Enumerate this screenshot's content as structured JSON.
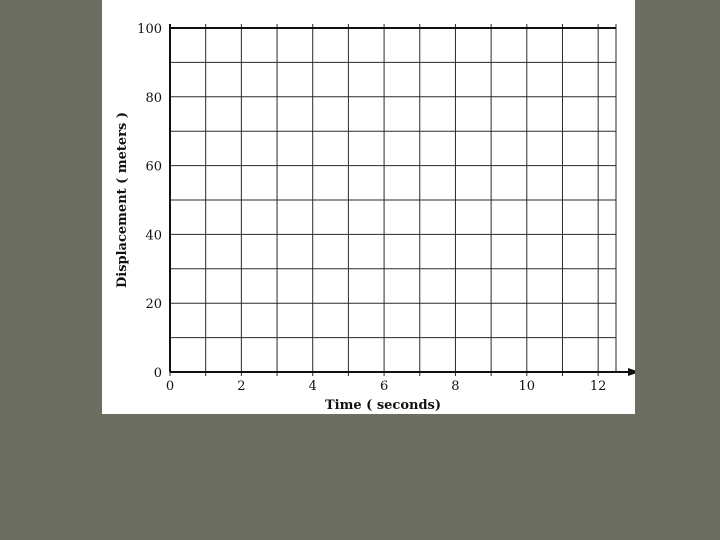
{
  "colors": {
    "background": "#6b6e60",
    "paper": "#ffffff",
    "ink": "#111111"
  },
  "chart_data": {
    "type": "line",
    "title": "",
    "xlabel": "Time  ( seconds)",
    "ylabel": "Displacement  ( meters )",
    "xlim": [
      0,
      12.5
    ],
    "ylim": [
      0,
      100
    ],
    "x_ticks": [
      0,
      2,
      4,
      6,
      8,
      10,
      12
    ],
    "y_ticks": [
      0,
      20,
      40,
      60,
      80,
      100
    ],
    "x_gridlines": [
      0,
      1,
      2,
      3,
      4,
      5,
      6,
      7,
      8,
      9,
      10,
      11,
      12
    ],
    "y_gridlines": [
      0,
      10,
      20,
      30,
      40,
      50,
      60,
      70,
      80,
      90,
      100
    ],
    "grid": true,
    "series": []
  }
}
